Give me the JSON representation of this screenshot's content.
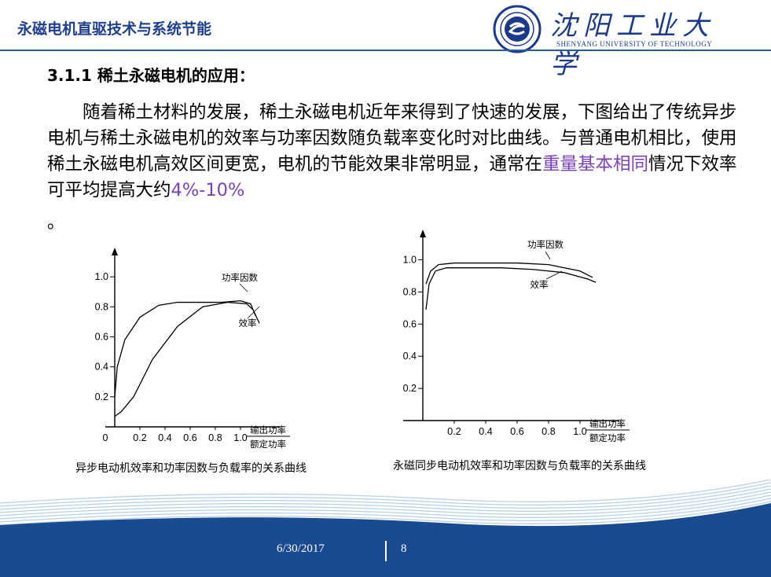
{
  "header": {
    "title": "永磁电机直驱技术与系统节能",
    "logo_name": "沈阳工业大学",
    "logo_en": "SHENYANG UNIVERSITY OF TECHNOLOGY"
  },
  "section_heading": "3.1.1 稀土永磁电机的应用：",
  "paragraph": {
    "text_before": "随着稀土材料的发展，稀土永磁电机近年来得到了快速的发展，下图给出了传统异步电机与稀土永磁电机的效率与功率因数随负载率变化时对比曲线。与普通电机相比，使用稀土永磁电机高效区间更宽，电机的节能效果非常明显，通常在",
    "highlight_1": "重量基本相同",
    "text_middle": "情况下效率可平均提高大约",
    "highlight_2": "4%-10%",
    "trailing": "。"
  },
  "chart_data": [
    {
      "type": "line",
      "x_tick_labels": [
        "0",
        "0.2",
        "0.4",
        "0.6",
        "0.8",
        "1.0"
      ],
      "y_tick_labels": [
        "0.2",
        "0.4",
        "0.6",
        "0.8",
        "1.0"
      ],
      "xlabel_top": "输出功率",
      "xlabel_bottom": "额定功率",
      "xlim": [
        0,
        1.25
      ],
      "ylim": [
        0,
        1.1
      ],
      "series": [
        {
          "name": "功率因数",
          "x": [
            0.0,
            0.05,
            0.15,
            0.3,
            0.5,
            0.7,
            0.9,
            1.05,
            1.1,
            1.15
          ],
          "y": [
            0.07,
            0.1,
            0.2,
            0.45,
            0.67,
            0.8,
            0.83,
            0.82,
            0.78,
            0.69
          ]
        },
        {
          "name": "效率",
          "x": [
            0.0,
            0.02,
            0.08,
            0.2,
            0.35,
            0.5,
            0.7,
            0.85,
            1.0,
            1.08,
            1.12
          ],
          "y": [
            0.2,
            0.4,
            0.58,
            0.73,
            0.81,
            0.83,
            0.83,
            0.83,
            0.84,
            0.82,
            0.74
          ]
        }
      ],
      "annotations": [
        "功率因数",
        "效率"
      ],
      "caption": "异步电动机效率和功率因数与负载率的关系曲线"
    },
    {
      "type": "line",
      "x_tick_labels": [
        "0.2",
        "0.4",
        "0.6",
        "0.8",
        "1.0"
      ],
      "y_tick_labels": [
        "0.2",
        "0.4",
        "0.6",
        "0.8",
        "1.0"
      ],
      "xlabel_top": "输出功率",
      "xlabel_bottom": "额定功率",
      "xlim": [
        0,
        1.2
      ],
      "ylim": [
        0,
        1.1
      ],
      "series": [
        {
          "name": "功率因数",
          "x": [
            0.02,
            0.05,
            0.1,
            0.2,
            0.4,
            0.6,
            0.8,
            1.0,
            1.08
          ],
          "y": [
            0.85,
            0.93,
            0.97,
            0.98,
            0.98,
            0.98,
            0.97,
            0.93,
            0.89
          ]
        },
        {
          "name": "效率",
          "x": [
            0.02,
            0.04,
            0.08,
            0.15,
            0.3,
            0.5,
            0.7,
            0.9,
            1.05,
            1.1
          ],
          "y": [
            0.69,
            0.85,
            0.93,
            0.95,
            0.95,
            0.95,
            0.94,
            0.92,
            0.88,
            0.86
          ]
        }
      ],
      "annotations": [
        "功率因数",
        "效率"
      ],
      "caption": "永磁同步电动机效率和功率因数与负载率的关系曲线"
    }
  ],
  "footer": {
    "date": "6/30/2017",
    "page": "8",
    "colors": {
      "band_dark": "#1a4a8f",
      "band_light": "#b9cfe8"
    }
  }
}
